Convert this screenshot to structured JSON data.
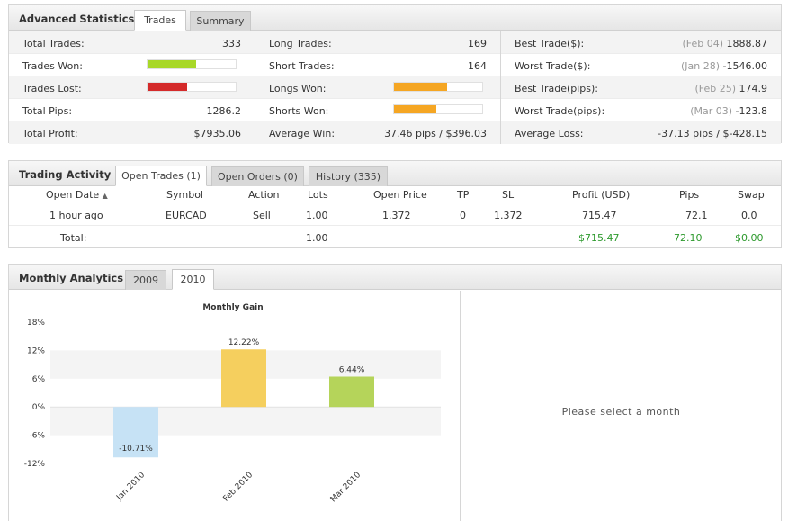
{
  "advanced_statistics": {
    "title": "Advanced Statistics",
    "tabs": [
      "Trades",
      "Summary"
    ],
    "active_tab": "Trades",
    "col1": {
      "total_trades_label": "Total Trades:",
      "total_trades": "333",
      "trades_won_label": "Trades Won:",
      "trades_won_fraction": 0.55,
      "trades_lost_label": "Trades Lost:",
      "trades_lost_fraction": 0.45,
      "total_pips_label": "Total Pips:",
      "total_pips": "1286.2",
      "total_profit_label": "Total Profit:",
      "total_profit": "$7935.06"
    },
    "col2": {
      "long_trades_label": "Long Trades:",
      "long_trades": "169",
      "short_trades_label": "Short Trades:",
      "short_trades": "164",
      "longs_won_label": "Longs Won:",
      "longs_won_fraction": 0.6,
      "shorts_won_label": "Shorts Won:",
      "shorts_won_fraction": 0.48,
      "average_win_label": "Average Win:",
      "average_win": "37.46 pips / $396.03"
    },
    "col3": {
      "best_trade_usd_label": "Best Trade($):",
      "best_trade_usd_date": "(Feb 04)",
      "best_trade_usd": "1888.87",
      "worst_trade_usd_label": "Worst Trade($):",
      "worst_trade_usd_date": "(Jan 28)",
      "worst_trade_usd": "-1546.00",
      "best_trade_pips_label": "Best Trade(pips):",
      "best_trade_pips_date": "(Feb 25)",
      "best_trade_pips": "174.9",
      "worst_trade_pips_label": "Worst Trade(pips):",
      "worst_trade_pips_date": "(Mar 03)",
      "worst_trade_pips": "-123.8",
      "average_loss_label": "Average Loss:",
      "average_loss": "-37.13 pips / $-428.15"
    },
    "colors": {
      "won": "#a8d828",
      "lost": "#d42a2a",
      "long_short": "#f5a623"
    }
  },
  "trading_activity": {
    "title": "Trading Activity",
    "tabs": [
      "Open Trades (1)",
      "Open Orders (0)",
      "History (335)"
    ],
    "active_tab": "Open Trades (1)",
    "columns": [
      "Open Date",
      "Symbol",
      "Action",
      "Lots",
      "Open Price",
      "TP",
      "SL",
      "Profit (USD)",
      "Pips",
      "Swap"
    ],
    "sort_indicator": "▲",
    "rows": [
      {
        "open_date": "1 hour ago",
        "symbol": "EURCAD",
        "action": "Sell",
        "lots": "1.00",
        "open_price": "1.372",
        "tp": "0",
        "sl": "1.372",
        "profit": "715.47",
        "pips": "72.1",
        "swap": "0.0"
      }
    ],
    "total": {
      "label": "Total:",
      "lots": "1.00",
      "profit": "$715.47",
      "pips": "72.10",
      "swap": "$0.00"
    }
  },
  "monthly_analytics": {
    "title": "Monthly Analytics",
    "tabs": [
      "2009",
      "2010"
    ],
    "active_tab": "2010",
    "select_message": "Please select a month"
  },
  "chart_data": {
    "type": "bar",
    "title": "Monthly Gain",
    "categories": [
      "Jan 2010",
      "Feb 2010",
      "Mar 2010"
    ],
    "values": [
      -10.71,
      12.22,
      6.44
    ],
    "value_labels": [
      "-10.71%",
      "12.22%",
      "6.44%"
    ],
    "bar_colors": [
      "#c6e2f5",
      "#f5cf5e",
      "#b5d45a"
    ],
    "ylim": [
      -12,
      18
    ],
    "yticks": [
      -12,
      -6,
      0,
      6,
      12,
      18
    ],
    "ytick_labels": [
      "-12%",
      "-6%",
      "0%",
      "6%",
      "12%",
      "18%"
    ],
    "xlabel": "",
    "ylabel": "",
    "grid": true
  }
}
